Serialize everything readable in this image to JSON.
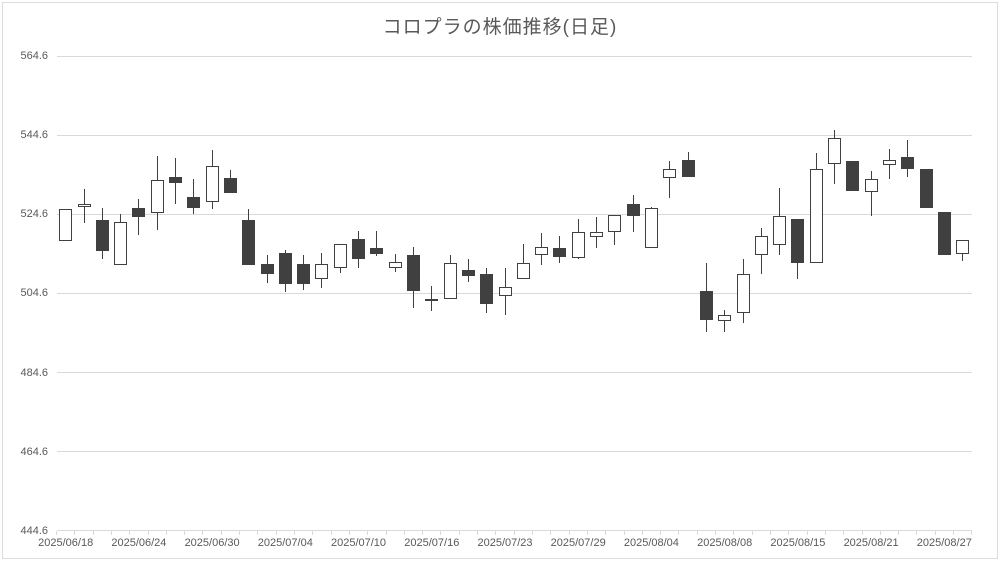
{
  "colors": {
    "text": "#595959",
    "gridline": "#d9d9d9",
    "candle_up_fill": "#ffffff",
    "candle_down_fill": "#404040",
    "candle_outline": "#404040"
  },
  "chart_data": {
    "type": "candlestick",
    "title": "コロプラの株価推移(日足)",
    "grid": "horizontal",
    "legend": false,
    "y_axis": {
      "min": 444.6,
      "max": 564.6,
      "step": 20,
      "tick_labels": [
        "564.6",
        "544.6",
        "524.6",
        "504.6",
        "484.6",
        "464.6",
        "444.6"
      ]
    },
    "x_axis": {
      "labels": [
        "2025/06/18",
        "2025/06/24",
        "2025/06/30",
        "2025/07/04",
        "2025/07/10",
        "2025/07/16",
        "2025/07/23",
        "2025/07/29",
        "2025/08/04",
        "2025/08/08",
        "2025/08/15",
        "2025/08/21",
        "2025/08/27"
      ],
      "label_every": 4
    },
    "candles": [
      {
        "o": 517.7,
        "h": 526.0,
        "l": 517.7,
        "c": 526.0
      },
      {
        "o": 527.0,
        "h": 531.1,
        "l": 522.3,
        "c": 527.1
      },
      {
        "o": 523.1,
        "h": 526.3,
        "l": 513.4,
        "c": 515.3
      },
      {
        "o": 511.8,
        "h": 524.7,
        "l": 511.8,
        "c": 522.7
      },
      {
        "o": 526.1,
        "h": 528.5,
        "l": 519.3,
        "c": 523.9
      },
      {
        "o": 524.9,
        "h": 539.3,
        "l": 520.5,
        "c": 533.2
      },
      {
        "o": 534.0,
        "h": 538.9,
        "l": 527.3,
        "c": 532.5
      },
      {
        "o": 529.0,
        "h": 533.5,
        "l": 524.7,
        "c": 526.1
      },
      {
        "o": 527.8,
        "h": 540.8,
        "l": 525.8,
        "c": 536.9
      },
      {
        "o": 533.7,
        "h": 535.8,
        "l": 530.0,
        "c": 530.0
      },
      {
        "o": 523.1,
        "h": 526.0,
        "l": 511.8,
        "c": 511.8
      },
      {
        "o": 512.1,
        "h": 514.2,
        "l": 507.1,
        "c": 509.5
      },
      {
        "o": 514.8,
        "h": 515.5,
        "l": 504.8,
        "c": 506.9
      },
      {
        "o": 512.0,
        "h": 514.3,
        "l": 505.5,
        "c": 507.0
      },
      {
        "o": 508.2,
        "h": 514.8,
        "l": 506.0,
        "c": 512.0
      },
      {
        "o": 511.0,
        "h": 517.1,
        "l": 509.7,
        "c": 517.0
      },
      {
        "o": 518.3,
        "h": 520.4,
        "l": 511.1,
        "c": 513.3
      },
      {
        "o": 516.0,
        "h": 520.3,
        "l": 513.9,
        "c": 514.5
      },
      {
        "o": 511.1,
        "h": 514.5,
        "l": 510.0,
        "c": 512.5
      },
      {
        "o": 514.4,
        "h": 516.3,
        "l": 501.0,
        "c": 505.2
      },
      {
        "o": 503.1,
        "h": 506.4,
        "l": 500.1,
        "c": 503.2
      },
      {
        "o": 503.2,
        "h": 514.2,
        "l": 503.2,
        "c": 512.4
      },
      {
        "o": 510.4,
        "h": 513.4,
        "l": 507.5,
        "c": 508.9
      },
      {
        "o": 509.6,
        "h": 510.9,
        "l": 499.5,
        "c": 501.8
      },
      {
        "o": 504.0,
        "h": 510.9,
        "l": 499.0,
        "c": 506.3
      },
      {
        "o": 508.2,
        "h": 517.2,
        "l": 508.2,
        "c": 512.3
      },
      {
        "o": 514.4,
        "h": 519.9,
        "l": 511.8,
        "c": 516.3
      },
      {
        "o": 516.2,
        "h": 519.1,
        "l": 512.2,
        "c": 513.8
      },
      {
        "o": 513.4,
        "h": 523.5,
        "l": 513.4,
        "c": 520.2
      },
      {
        "o": 518.9,
        "h": 523.8,
        "l": 516.1,
        "c": 520.2
      },
      {
        "o": 520.2,
        "h": 524.4,
        "l": 516.8,
        "c": 524.3
      },
      {
        "o": 527.1,
        "h": 529.4,
        "l": 520.0,
        "c": 524.2
      },
      {
        "o": 516.1,
        "h": 526.4,
        "l": 516.1,
        "c": 526.2
      },
      {
        "o": 533.8,
        "h": 538.0,
        "l": 528.8,
        "c": 536.1
      },
      {
        "o": 538.2,
        "h": 540.3,
        "l": 534.0,
        "c": 534.0
      },
      {
        "o": 505.2,
        "h": 512.3,
        "l": 494.9,
        "c": 497.9
      },
      {
        "o": 497.7,
        "h": 500.3,
        "l": 494.9,
        "c": 499.1
      },
      {
        "o": 499.7,
        "h": 513.4,
        "l": 497.2,
        "c": 509.5
      },
      {
        "o": 514.2,
        "h": 521.2,
        "l": 509.5,
        "c": 519.1
      },
      {
        "o": 516.8,
        "h": 531.3,
        "l": 514.4,
        "c": 524.2
      },
      {
        "o": 523.3,
        "h": 523.4,
        "l": 508.2,
        "c": 512.2
      },
      {
        "o": 512.3,
        "h": 540.1,
        "l": 512.3,
        "c": 536.0
      },
      {
        "o": 537.4,
        "h": 545.8,
        "l": 532.3,
        "c": 543.9
      },
      {
        "o": 538.0,
        "h": 538.0,
        "l": 530.4,
        "c": 530.4
      },
      {
        "o": 530.3,
        "h": 535.5,
        "l": 524.1,
        "c": 533.4
      },
      {
        "o": 537.0,
        "h": 541.2,
        "l": 533.4,
        "c": 538.2
      },
      {
        "o": 539.1,
        "h": 543.3,
        "l": 534.0,
        "c": 536.1
      },
      {
        "o": 536.1,
        "h": 536.1,
        "l": 526.2,
        "c": 526.2
      },
      {
        "o": 525.3,
        "h": 525.3,
        "l": 514.3,
        "c": 514.3
      },
      {
        "o": 514.4,
        "h": 518.2,
        "l": 512.9,
        "c": 518.0
      }
    ]
  }
}
